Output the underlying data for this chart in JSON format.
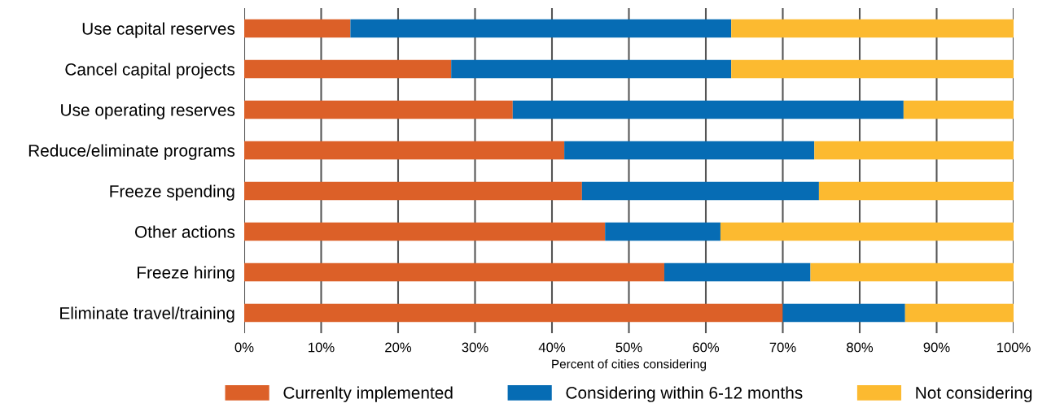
{
  "chart_data": {
    "type": "bar",
    "orientation": "horizontal",
    "stacked": true,
    "xlabel": "Percent of cities considering",
    "categories": [
      "Use capital reserves",
      "Cancel capital projects",
      "Use operating reserves",
      "Reduce/eliminate programs",
      "Freeze spending",
      "Other actions",
      "Freeze hiring",
      "Eliminate travel/training"
    ],
    "series": [
      {
        "name": "Currenlty implemented",
        "color": "#dc6028",
        "values": [
          13.8,
          26.9,
          34.9,
          41.6,
          43.9,
          46.9,
          54.6,
          70
        ]
      },
      {
        "name": "Considering within 6-12 months",
        "color": "#066cb4",
        "values": [
          49.5,
          36.4,
          50.8,
          32.5,
          30.8,
          15.0,
          19.0,
          15.9
        ]
      },
      {
        "name": "Not considering",
        "color": "#fcba30",
        "values": [
          36.7,
          36.7,
          14.3,
          25.9,
          25.3,
          38.1,
          26.4,
          14.1
        ]
      }
    ],
    "xlim": [
      0,
      100
    ],
    "xticks": [
      {
        "value": 0,
        "label": "0%"
      },
      {
        "value": 10,
        "label": "10%"
      },
      {
        "value": 20,
        "label": "20%"
      },
      {
        "value": 30,
        "label": "30%"
      },
      {
        "value": 40,
        "label": "40%"
      },
      {
        "value": 50,
        "label": "50%"
      },
      {
        "value": 60,
        "label": "60%"
      },
      {
        "value": 70,
        "label": "70%"
      },
      {
        "value": 80,
        "label": "80%"
      },
      {
        "value": 90,
        "label": "90%"
      },
      {
        "value": 100,
        "label": "100%"
      }
    ],
    "grid": "x",
    "legend": "bottom"
  }
}
